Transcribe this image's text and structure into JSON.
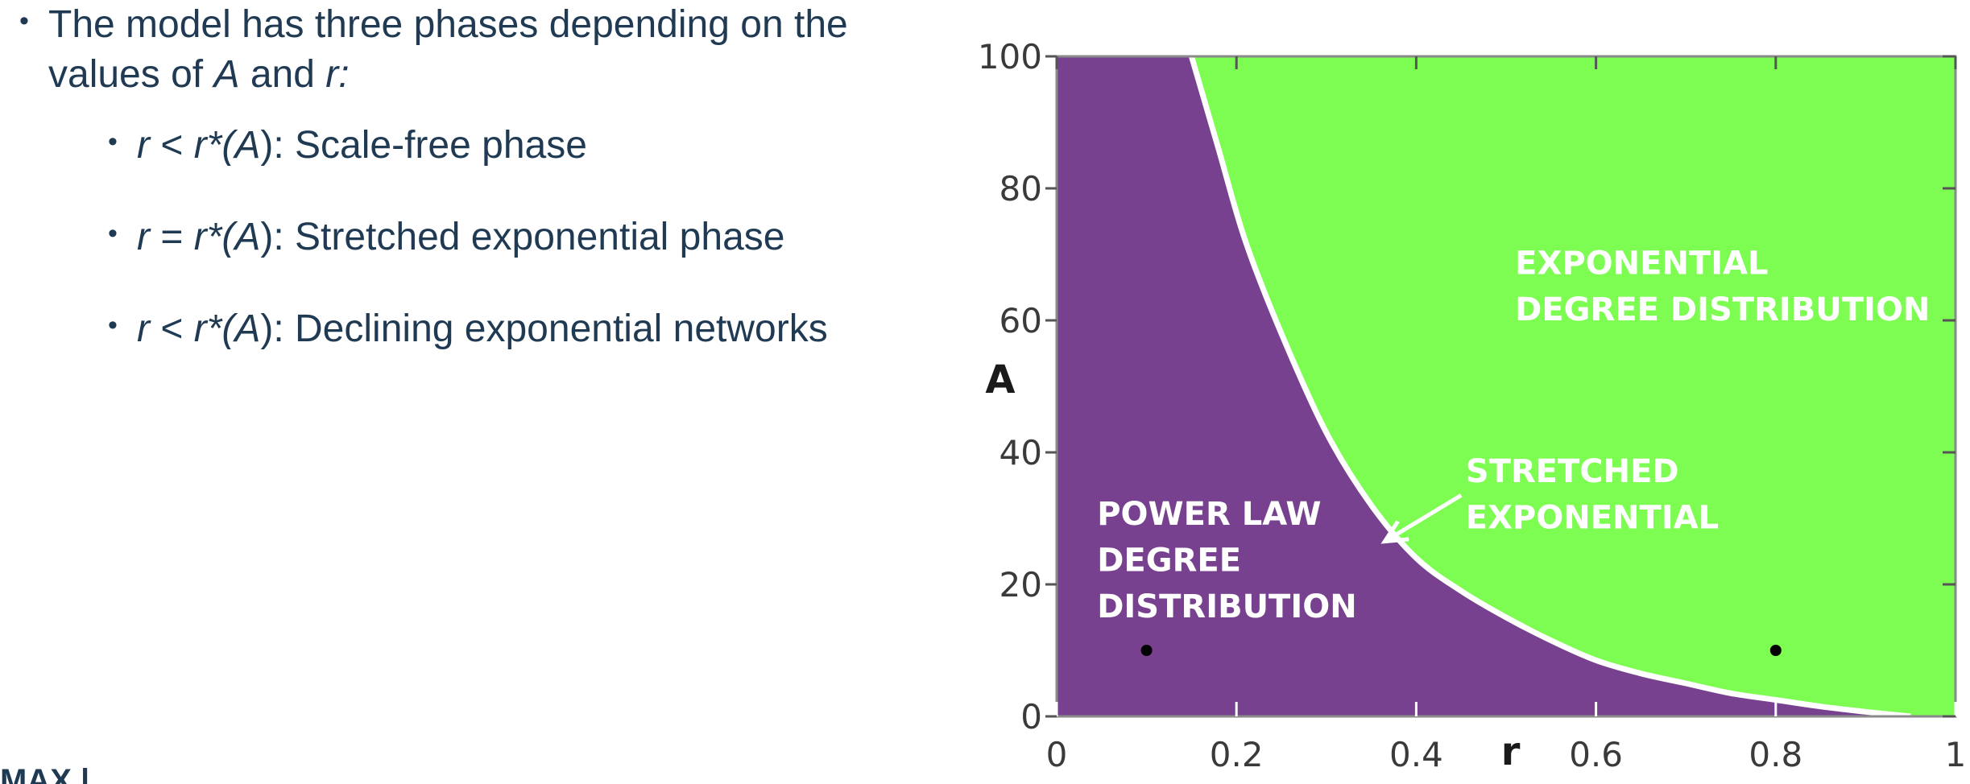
{
  "text": {
    "main": "The model has three phases depending on the values of",
    "main_var_A": "A",
    "main_and": " and ",
    "main_var_r": "r:",
    "items": [
      {
        "var": "r",
        "op": " < ",
        "crit": "r*(",
        "critA": "A",
        "close": ")",
        "desc": ": Scale-free phase"
      },
      {
        "var": "r",
        "op": " = ",
        "crit": "r*(",
        "critA": "A",
        "close": ")",
        "desc": ": Stretched exponential phase"
      },
      {
        "var": "r",
        "op": " < ",
        "crit": "r*(",
        "critA": "A",
        "close": ")",
        "desc": ": Declining exponential networks"
      }
    ],
    "cut_bottom": "MAX   |"
  },
  "chart_data": {
    "type": "area",
    "xlabel": "r",
    "ylabel": "A",
    "xlim": [
      0,
      1
    ],
    "ylim": [
      0,
      100
    ],
    "x_ticks": [
      "0",
      "0.2",
      "0.4",
      "0.6",
      "0.8",
      "1"
    ],
    "y_ticks": [
      "0",
      "20",
      "40",
      "60",
      "80",
      "100"
    ],
    "boundary": {
      "name": "",
      "x": [
        0.15,
        0.18,
        0.21,
        0.25,
        0.3,
        0.35,
        0.4,
        0.45,
        0.5,
        0.55,
        0.6,
        0.65,
        0.7,
        0.75,
        0.8,
        0.85,
        0.9,
        0.95
      ],
      "y": [
        100,
        86,
        72,
        58,
        43,
        32,
        24,
        19,
        15,
        11.5,
        8.5,
        6.5,
        5,
        3.5,
        2.5,
        1.5,
        0.7,
        0
      ]
    },
    "regions": [
      {
        "label_lines": [
          "POWER LAW",
          "DEGREE",
          "DISTRIBUTION"
        ],
        "color": "#77418f"
      },
      {
        "label_lines": [
          "EXPONENTIAL",
          "DEGREE DISTRIBUTION"
        ],
        "color": "#7dfc52"
      }
    ],
    "annotation": {
      "label_lines": [
        "STRETCHED",
        "EXPONENTIAL"
      ]
    },
    "points": [
      {
        "x": 0.1,
        "y": 10
      },
      {
        "x": 0.8,
        "y": 10
      }
    ],
    "grid": false
  }
}
